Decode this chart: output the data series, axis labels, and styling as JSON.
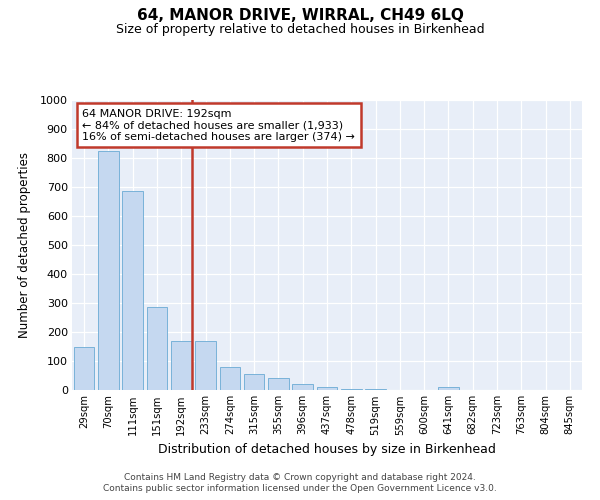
{
  "title": "64, MANOR DRIVE, WIRRAL, CH49 6LQ",
  "subtitle": "Size of property relative to detached houses in Birkenhead",
  "xlabel": "Distribution of detached houses by size in Birkenhead",
  "ylabel": "Number of detached properties",
  "categories": [
    "29sqm",
    "70sqm",
    "111sqm",
    "151sqm",
    "192sqm",
    "233sqm",
    "274sqm",
    "315sqm",
    "355sqm",
    "396sqm",
    "437sqm",
    "478sqm",
    "519sqm",
    "559sqm",
    "600sqm",
    "641sqm",
    "682sqm",
    "723sqm",
    "763sqm",
    "804sqm",
    "845sqm"
  ],
  "values": [
    150,
    825,
    685,
    285,
    170,
    170,
    80,
    55,
    43,
    20,
    10,
    5,
    5,
    0,
    0,
    10,
    0,
    0,
    0,
    0,
    0
  ],
  "highlight_index": 4,
  "highlight_color": "#c0392b",
  "bar_color": "#c5d8f0",
  "bar_edge_color": "#6aaad4",
  "background_color": "#e8eef8",
  "grid_color": "#ffffff",
  "ylim": [
    0,
    1000
  ],
  "yticks": [
    0,
    100,
    200,
    300,
    400,
    500,
    600,
    700,
    800,
    900,
    1000
  ],
  "annotation_line1": "64 MANOR DRIVE: 192sqm",
  "annotation_line2": "← 84% of detached houses are smaller (1,933)",
  "annotation_line3": "16% of semi-detached houses are larger (374) →",
  "footer_line1": "Contains HM Land Registry data © Crown copyright and database right 2024.",
  "footer_line2": "Contains public sector information licensed under the Open Government Licence v3.0."
}
